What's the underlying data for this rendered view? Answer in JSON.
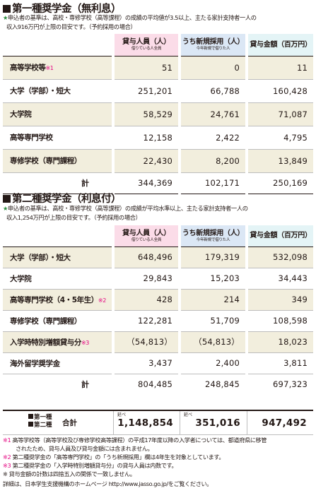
{
  "section1": {
    "title": "第一種奨学金（無利息）",
    "note_star": "★",
    "note_line1": "申込者の基準は、高校・専修学校（高等課程）の成績の平均値が3.5以上、主たる家計支持者一人の",
    "note_line2": "収入916万円が上限の目安です。（予約採用の場合）",
    "headers": [
      {
        "main": "貸与人員（人）",
        "sub": "借りている人全員"
      },
      {
        "main": "うち新規採用（人）",
        "sub": "今年新規で借りた人"
      },
      {
        "main": "貸与金額（百万円）",
        "sub": ""
      }
    ],
    "rows": [
      {
        "label": "高等学校等",
        "mark": "※1",
        "v1": "51",
        "v2": "0",
        "v3": "11"
      },
      {
        "label": "大学（学部）・短大",
        "mark": "",
        "v1": "251,201",
        "v2": "66,788",
        "v3": "160,428"
      },
      {
        "label": "大学院",
        "mark": "",
        "v1": "58,529",
        "v2": "24,761",
        "v3": "71,087"
      },
      {
        "label": "高等専門学校",
        "mark": "",
        "v1": "12,158",
        "v2": "2,422",
        "v3": "4,795"
      },
      {
        "label": "専修学校（専門課程）",
        "mark": "",
        "v1": "22,430",
        "v2": "8,200",
        "v3": "13,849"
      }
    ],
    "total": {
      "label": "計",
      "v1": "344,369",
      "v2": "102,171",
      "v3": "250,169"
    }
  },
  "section2": {
    "title": "第二種奨学金（利息付）",
    "note_star": "★",
    "note_line1": "申込者の基準は、高校・専修学校（高等課程）の成績が平均水準以上、主たる家計支持者一人の",
    "note_line2": "収入1,254万円が上限の目安です。（予約採用の場合）",
    "headers": [
      {
        "main": "貸与人員（人）",
        "sub": "借りている人全員"
      },
      {
        "main": "うち新規採用（人）",
        "sub": "今年新規で借りた人"
      },
      {
        "main": "貸与金額（百万円）",
        "sub": ""
      }
    ],
    "rows": [
      {
        "label": "大学（学部）・短大",
        "mark": "",
        "v1": "648,496",
        "v2": "179,319",
        "v3": "532,098"
      },
      {
        "label": "大学院",
        "mark": "",
        "v1": "29,843",
        "v2": "15,203",
        "v3": "34,443"
      },
      {
        "label": "高等専門学校（4・5年生）",
        "mark": "※2",
        "v1": "428",
        "v2": "214",
        "v3": "349"
      },
      {
        "label": "専修学校（専門課程）",
        "mark": "",
        "v1": "122,281",
        "v2": "51,709",
        "v3": "108,598"
      },
      {
        "label": "入学時特別増額貸与分",
        "mark": "※3",
        "v1": "（54,813）",
        "v2": "（54,813）",
        "v3": "18,023"
      },
      {
        "label": "海外留学奨学金",
        "mark": "",
        "v1": "3,437",
        "v2": "2,400",
        "v3": "3,811"
      }
    ],
    "total": {
      "label": "計",
      "v1": "804,485",
      "v2": "248,845",
      "v3": "697,323"
    }
  },
  "grand_total": {
    "label_line1": "第一種",
    "label_line2": "第二種",
    "label": "合計",
    "nobe": "延べ",
    "v1": "1,148,854",
    "v2": "351,016",
    "v3": "947,492"
  },
  "footnotes": {
    "f1_mark": "※1",
    "f1_line1": " 高等学校等（高等学校及び専修学校高等課程）の平成17年度以降の入学者については、都道府県に移管",
    "f1_line2": "されたため、貸与人員及び貸与金額には含まれません。",
    "f2_mark": "※2",
    "f2_text": " 第二種奨学金の「高等専門学校」の「うち新規採用」欄は4年生を対象としています。",
    "f3_mark": "※3",
    "f3_text": " 第二種奨学金の「入学時特別増額貸与分」の貸与人員は内数です。",
    "f4_text": "※ 貸与金額の計数は四捨五入の関係で一致しません。",
    "detail": "詳細は、日本学生支援機構のホームページ http://www.jasso.go.jp/をご覧ください。"
  },
  "colors": {
    "pink": "#fbdce8",
    "blue": "#dbe7f5",
    "cyan": "#e4f4f6",
    "shade": "#f2eedd",
    "mark": "#e4007f",
    "star": "#2e8b3e"
  }
}
